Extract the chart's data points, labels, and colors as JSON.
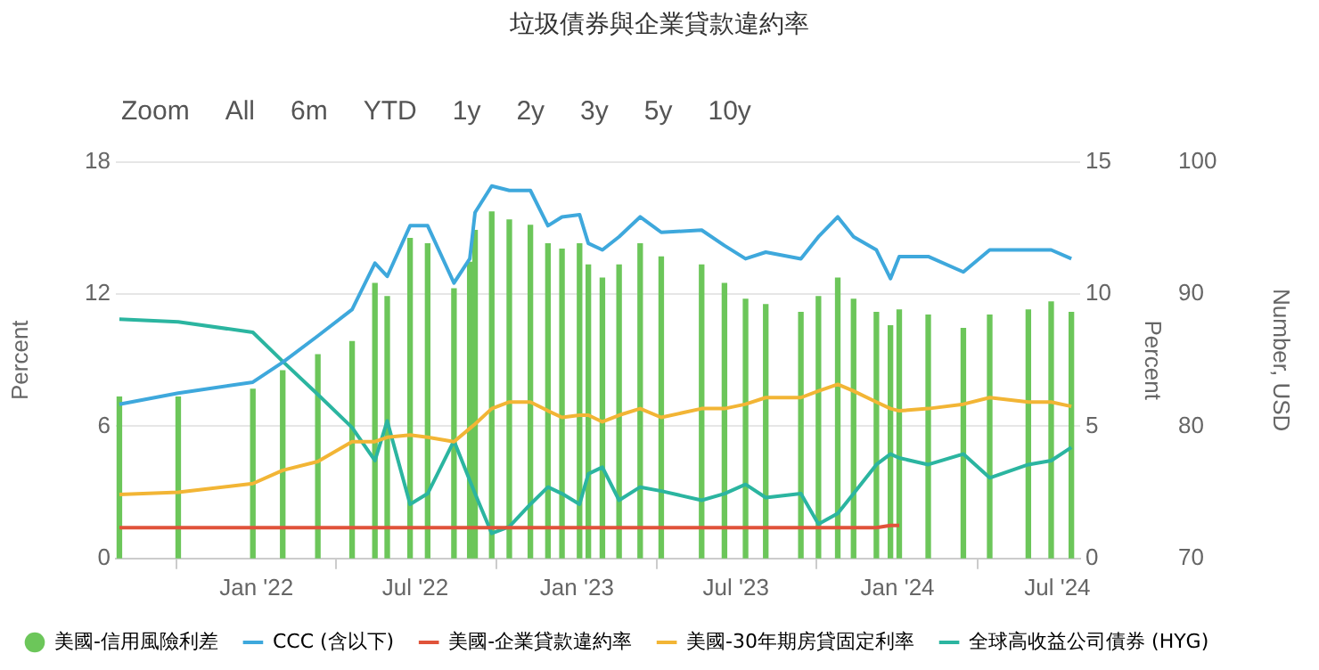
{
  "chart_data": {
    "type": "line",
    "title": "垃圾債券與企業貸款違約率",
    "annotations": [
      "Zoom",
      "All",
      "6m",
      "YTD",
      "1y",
      "2y",
      "3y",
      "5y",
      "10y"
    ],
    "x": [
      "2021-07-29",
      "2021-10-04",
      "2021-12-28",
      "2022-01-31",
      "2022-03-12",
      "2022-04-20",
      "2022-05-16",
      "2022-05-30",
      "2022-06-25",
      "2022-07-15",
      "2022-08-14",
      "2022-09-01",
      "2022-09-07",
      "2022-09-26",
      "2022-10-16",
      "2022-11-09",
      "2022-11-29",
      "2022-12-15",
      "2023-01-04",
      "2023-01-14",
      "2023-01-30",
      "2023-02-18",
      "2023-03-14",
      "2023-04-07",
      "2023-05-23",
      "2023-06-18",
      "2023-07-12",
      "2023-08-04",
      "2023-09-13",
      "2023-10-03",
      "2023-10-25",
      "2023-11-12",
      "2023-12-08",
      "2023-12-24",
      "2024-01-03",
      "2024-02-05",
      "2024-03-16",
      "2024-04-15",
      "2024-05-29",
      "2024-06-24",
      "2024-07-17"
    ],
    "series": [
      {
        "name": "美國-信用風險利差",
        "type": "bar",
        "axis": "y2",
        "color": "#6cc65a",
        "values": [
          6.1,
          6.1,
          6.4,
          7.1,
          7.7,
          8.2,
          10.4,
          9.9,
          12.1,
          11.9,
          10.2,
          11.2,
          12.4,
          13.1,
          12.8,
          12.6,
          11.9,
          11.7,
          11.9,
          11.1,
          10.6,
          11.1,
          11.9,
          11.4,
          11.1,
          10.4,
          9.8,
          9.6,
          9.3,
          9.9,
          10.6,
          9.8,
          9.3,
          8.8,
          9.4,
          9.2,
          8.7,
          9.2,
          9.4,
          9.7,
          9.3
        ]
      },
      {
        "name": "CCC (含以下)",
        "color": "#3ea8dc",
        "values": [
          7.0,
          7.5,
          8.0,
          8.9,
          10.1,
          11.3,
          13.4,
          12.8,
          15.1,
          15.1,
          12.5,
          13.6,
          15.7,
          16.9,
          16.7,
          16.7,
          15.1,
          15.5,
          15.6,
          14.3,
          14.0,
          14.6,
          15.5,
          14.8,
          14.9,
          14.2,
          13.6,
          13.9,
          13.6,
          14.6,
          15.5,
          14.6,
          14.0,
          12.7,
          13.7,
          13.7,
          13.0,
          14.0,
          14.0,
          14.0,
          13.6
        ]
      },
      {
        "name": "美國-企業貸款違約率",
        "color": "#e0533a",
        "values": [
          1.4,
          1.4,
          1.4,
          1.4,
          1.4,
          1.4,
          1.4,
          1.4,
          1.4,
          1.4,
          1.4,
          1.4,
          1.4,
          1.4,
          1.4,
          1.4,
          1.4,
          1.4,
          1.4,
          1.4,
          1.4,
          1.4,
          1.4,
          1.4,
          1.4,
          1.4,
          1.4,
          1.4,
          1.4,
          1.4,
          1.4,
          1.4,
          1.4,
          1.5,
          1.5,
          null,
          null,
          null,
          null,
          null,
          null
        ]
      },
      {
        "name": "美國-30年期房貸固定利率",
        "color": "#f2b535",
        "values": [
          2.9,
          3.0,
          3.4,
          4.0,
          4.4,
          5.3,
          5.3,
          5.5,
          5.6,
          5.5,
          5.3,
          5.9,
          6.1,
          6.8,
          7.1,
          7.1,
          6.7,
          6.4,
          6.5,
          6.5,
          6.2,
          6.5,
          6.8,
          6.4,
          6.8,
          6.8,
          7.0,
          7.3,
          7.3,
          7.6,
          7.9,
          7.6,
          7.1,
          6.8,
          6.7,
          6.8,
          7.0,
          7.3,
          7.1,
          7.1,
          6.9
        ]
      },
      {
        "name": "全球高收益公司債券 (HYG)",
        "axis": "y3",
        "color": "#2bb5a0",
        "values": [
          88.1,
          87.9,
          87.1,
          84.9,
          82.4,
          79.9,
          77.4,
          80.4,
          74.1,
          74.9,
          78.9,
          75.9,
          74.9,
          71.9,
          72.4,
          74.1,
          75.4,
          74.9,
          74.1,
          76.4,
          76.9,
          74.4,
          75.4,
          75.1,
          74.4,
          74.9,
          75.6,
          74.6,
          74.9,
          72.6,
          73.4,
          74.9,
          77.1,
          77.9,
          77.6,
          77.1,
          77.9,
          76.1,
          77.1,
          77.4,
          78.4
        ]
      }
    ],
    "xlim": [
      "2021-07-25",
      "2024-07-27"
    ],
    "xticks": [
      {
        "value": "2022-01-01",
        "label": "Jan '22"
      },
      {
        "value": "2022-07-01",
        "label": "Jul '22"
      },
      {
        "value": "2023-01-01",
        "label": "Jan '23"
      },
      {
        "value": "2023-07-01",
        "label": "Jul '23"
      },
      {
        "value": "2024-01-01",
        "label": "Jan '24"
      },
      {
        "value": "2024-07-01",
        "label": "Jul '24"
      }
    ],
    "ylabel": "Percent",
    "ylim": [
      0,
      18
    ],
    "yticks": [
      0,
      6,
      12,
      18
    ],
    "y2label": "Percent",
    "y2lim": [
      0,
      15
    ],
    "y2ticks": [
      0,
      5,
      10,
      15
    ],
    "y3label": "Number, USD",
    "y3lim": [
      70,
      100
    ],
    "y3ticks": [
      70,
      80,
      90,
      100
    ],
    "grid": "y",
    "legend": "bottom",
    "marker": "none",
    "line_style": "solid"
  }
}
